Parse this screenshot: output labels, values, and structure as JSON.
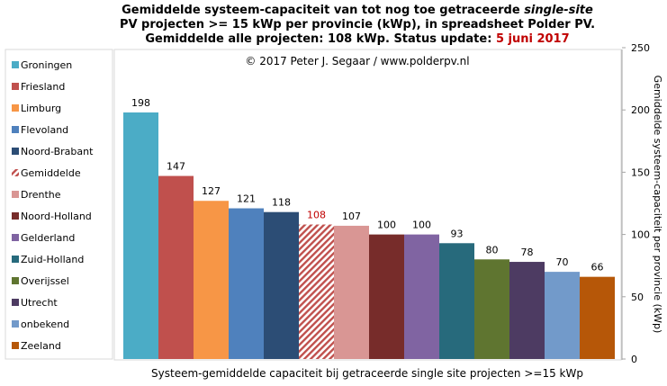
{
  "chart_data": {
    "type": "bar",
    "title": {
      "line1_a": "Gemiddelde  systeem-capaciteit van tot nog toe getraceerde ",
      "line1_b": "single-site",
      "line2": "PV projecten >= 15 kWp per provincie (kWp), in spreadsheet Polder PV.",
      "line3_a": "Gemiddelde alle projecten: 108 kWp. Status update: ",
      "line3_b": "5 juni 2017"
    },
    "copyright": "© 2017 Peter J. Segaar / www.polderpv.nl",
    "xlabel": "Systeem-gemiddelde capaciteit bij getraceerde single site projecten >=15 kWp",
    "ylabel": "Gemiddelde systeem-capaciteit per provincie (kWp)",
    "ylim": [
      0,
      250
    ],
    "yticks": [
      0,
      50,
      100,
      150,
      200,
      250
    ],
    "grid": false,
    "legend_position": "left",
    "categories": [
      "Groningen",
      "Friesland",
      "Limburg",
      "Flevoland",
      "Noord-Brabant",
      "Gemiddelde",
      "Drenthe",
      "Noord-Holland",
      "Gelderland",
      "Zuid-Holland",
      "Overijssel",
      "Utrecht",
      "onbekend",
      "Zeeland"
    ],
    "values": [
      198,
      147,
      127,
      121,
      118,
      108,
      107,
      100,
      100,
      93,
      80,
      78,
      70,
      66
    ],
    "colors": [
      "#4bacc6",
      "#c0504d",
      "#f79646",
      "#4f81bd",
      "#2c4d75",
      "#c0504d",
      "#d99694",
      "#772c2a",
      "#8064a2",
      "#276a7c",
      "#5f7530",
      "#4d3b62",
      "#729aca",
      "#b65708"
    ],
    "highlight": {
      "category": "Gemiddelde",
      "pattern": "diagonal-hatch",
      "label_color": "#c00000"
    },
    "date_color": "#c00000"
  }
}
